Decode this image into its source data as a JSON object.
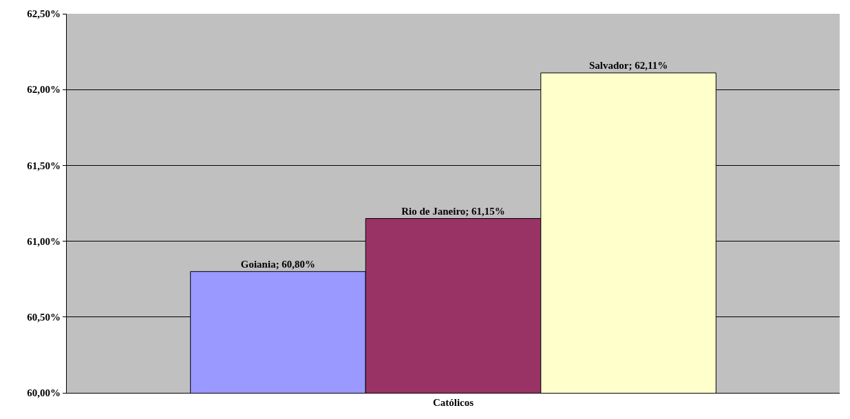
{
  "chart_data": {
    "type": "bar",
    "categories": [
      "Católicos"
    ],
    "series": [
      {
        "color": "#9999ff",
        "values": [
          60.8
        ],
        "value_labels": [
          "Goiania; 60,80%"
        ]
      },
      {
        "color": "#993366",
        "values": [
          61.15
        ],
        "value_labels": [
          "Rio de Janeiro; 61,15%"
        ]
      },
      {
        "color": "#ffffcc",
        "values": [
          62.11
        ],
        "value_labels": [
          "Salvador; 62,11%"
        ]
      }
    ],
    "ylim": [
      60,
      62.5
    ],
    "yticks": [
      {
        "value": 60,
        "label": "60,00%"
      },
      {
        "value": 60.5,
        "label": "60,50%"
      },
      {
        "value": 61,
        "label": "61,00%"
      },
      {
        "value": 61.5,
        "label": "61,50%"
      },
      {
        "value": 62,
        "label": "62,00%"
      },
      {
        "value": 62.5,
        "label": "62,50%"
      }
    ],
    "grid": "y",
    "legend": false
  }
}
